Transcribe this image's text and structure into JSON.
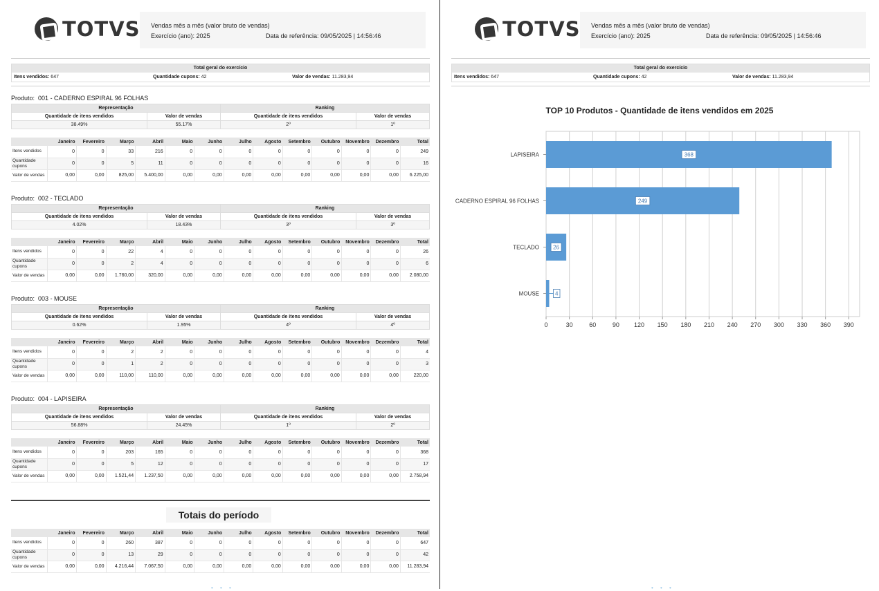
{
  "header": {
    "logo_text": "TOTVS",
    "report_title": "Vendas mês a mês (valor bruto de vendas)",
    "exercise_label": "Exercício (ano):",
    "exercise_value": "2025",
    "ref_label": "Data de referência:",
    "ref_value": "09/05/2025 | 14:56:46"
  },
  "summary": {
    "title": "Total geral do exercício",
    "items_label": "Itens vendidos:",
    "items_value": "647",
    "coupons_label": "Quantidade cupons:",
    "coupons_value": "42",
    "sales_label": "Valor de vendas:",
    "sales_value": "11.283,94"
  },
  "labels": {
    "product_prefix": "Produto:",
    "representation": "Representação",
    "ranking": "Ranking",
    "qty_items": "Quantidade de itens vendidos",
    "sales_value": "Valor de vendas",
    "months": [
      "Janeiro",
      "Fevereiro",
      "Março",
      "Abril",
      "Maio",
      "Junho",
      "Julho",
      "Agosto",
      "Setembro",
      "Outubro",
      "Novembro",
      "Dezembro",
      "Total"
    ],
    "row_labels": [
      "Itens vendidos",
      "Quantidade cupons",
      "Valor de vendas"
    ],
    "period_totals": "Totais do período"
  },
  "products": [
    {
      "name": "001 - CADERNO ESPIRAL 96 FOLHAS",
      "rep_qty": "38.49%",
      "rep_val": "55.17%",
      "rank_qty": "2º",
      "rank_val": "1º",
      "rows": [
        [
          "0",
          "0",
          "33",
          "216",
          "0",
          "0",
          "0",
          "0",
          "0",
          "0",
          "0",
          "0",
          "249"
        ],
        [
          "0",
          "0",
          "5",
          "11",
          "0",
          "0",
          "0",
          "0",
          "0",
          "0",
          "0",
          "0",
          "16"
        ],
        [
          "0,00",
          "0,00",
          "825,00",
          "5.400,00",
          "0,00",
          "0,00",
          "0,00",
          "0,00",
          "0,00",
          "0,00",
          "0,00",
          "0,00",
          "6.225,00"
        ]
      ]
    },
    {
      "name": "002 - TECLADO",
      "rep_qty": "4.02%",
      "rep_val": "18.43%",
      "rank_qty": "3º",
      "rank_val": "3º",
      "rows": [
        [
          "0",
          "0",
          "22",
          "4",
          "0",
          "0",
          "0",
          "0",
          "0",
          "0",
          "0",
          "0",
          "26"
        ],
        [
          "0",
          "0",
          "2",
          "4",
          "0",
          "0",
          "0",
          "0",
          "0",
          "0",
          "0",
          "0",
          "6"
        ],
        [
          "0,00",
          "0,00",
          "1.760,00",
          "320,00",
          "0,00",
          "0,00",
          "0,00",
          "0,00",
          "0,00",
          "0,00",
          "0,00",
          "0,00",
          "2.080,00"
        ]
      ]
    },
    {
      "name": "003 - MOUSE",
      "rep_qty": "0.62%",
      "rep_val": "1.95%",
      "rank_qty": "4º",
      "rank_val": "4º",
      "rows": [
        [
          "0",
          "0",
          "2",
          "2",
          "0",
          "0",
          "0",
          "0",
          "0",
          "0",
          "0",
          "0",
          "4"
        ],
        [
          "0",
          "0",
          "1",
          "2",
          "0",
          "0",
          "0",
          "0",
          "0",
          "0",
          "0",
          "0",
          "3"
        ],
        [
          "0,00",
          "0,00",
          "110,00",
          "110,00",
          "0,00",
          "0,00",
          "0,00",
          "0,00",
          "0,00",
          "0,00",
          "0,00",
          "0,00",
          "220,00"
        ]
      ]
    },
    {
      "name": "004 - LAPISEIRA",
      "rep_qty": "56.88%",
      "rep_val": "24.45%",
      "rank_qty": "1º",
      "rank_val": "2º",
      "rows": [
        [
          "0",
          "0",
          "203",
          "165",
          "0",
          "0",
          "0",
          "0",
          "0",
          "0",
          "0",
          "0",
          "368"
        ],
        [
          "0",
          "0",
          "5",
          "12",
          "0",
          "0",
          "0",
          "0",
          "0",
          "0",
          "0",
          "0",
          "17"
        ],
        [
          "0,00",
          "0,00",
          "1.521,44",
          "1.237,50",
          "0,00",
          "0,00",
          "0,00",
          "0,00",
          "0,00",
          "0,00",
          "0,00",
          "0,00",
          "2.758,94"
        ]
      ]
    }
  ],
  "totals": {
    "rows": [
      [
        "0",
        "0",
        "260",
        "387",
        "0",
        "0",
        "0",
        "0",
        "0",
        "0",
        "0",
        "0",
        "647"
      ],
      [
        "0",
        "0",
        "13",
        "29",
        "0",
        "0",
        "0",
        "0",
        "0",
        "0",
        "0",
        "0",
        "42"
      ],
      [
        "0,00",
        "0,00",
        "4.216,44",
        "7.067,50",
        "0,00",
        "0,00",
        "0,00",
        "0,00",
        "0,00",
        "0,00",
        "0,00",
        "0,00",
        "11.283,94"
      ]
    ]
  },
  "chart_data": {
    "type": "bar",
    "orientation": "horizontal",
    "title": "TOP 10 Produtos - Quantidade de itens vendidos em 2025",
    "categories": [
      "LAPISEIRA",
      "CADERNO ESPIRAL 96 FOLHAS",
      "TECLADO",
      "MOUSE"
    ],
    "values": [
      368,
      249,
      26,
      4
    ],
    "data_labels": [
      "368",
      "249",
      "26",
      "4"
    ],
    "xticks": [
      0,
      30,
      60,
      90,
      120,
      150,
      180,
      210,
      240,
      270,
      300,
      330,
      360,
      390
    ],
    "xlim": [
      0,
      404
    ],
    "grid": true,
    "bar_color": "#5b9bd5"
  }
}
